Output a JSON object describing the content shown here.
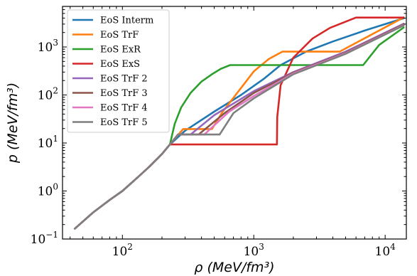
{
  "chart_data": {
    "type": "line",
    "xlabel": "ρ (MeV/fm³)",
    "ylabel": "p (MeV/fm³)",
    "xscale": "log",
    "yscale": "log",
    "xlim": [
      35,
      14500
    ],
    "ylim": [
      0.1,
      7000
    ],
    "x_ticks": [
      {
        "value": 100,
        "base": "10",
        "exp": "2"
      },
      {
        "value": 1000,
        "base": "10",
        "exp": "3"
      },
      {
        "value": 10000,
        "base": "10",
        "exp": "4"
      }
    ],
    "y_ticks": [
      {
        "value": 0.1,
        "base": "10",
        "exp": "−1"
      },
      {
        "value": 1,
        "base": "10",
        "exp": "0"
      },
      {
        "value": 10,
        "base": "10",
        "exp": "1"
      },
      {
        "value": 100,
        "base": "10",
        "exp": "2"
      },
      {
        "value": 1000,
        "base": "10",
        "exp": "3"
      }
    ],
    "grid": false,
    "legend_position": "top-left",
    "common_low_density": {
      "x": [
        43,
        60,
        80,
        100,
        130,
        160,
        200,
        230
      ],
      "y": [
        0.16,
        0.36,
        0.65,
        1.0,
        1.9,
        3.2,
        5.9,
        9.3
      ]
    },
    "series": [
      {
        "name": "EoS Interm",
        "color": "#1f77b4",
        "x": [
          230,
          300,
          500,
          800,
          1200,
          1600,
          2500,
          4000,
          7000,
          14000
        ],
        "y": [
          9.3,
          18,
          45,
          100,
          220,
          420,
          800,
          1300,
          2200,
          4000
        ]
      },
      {
        "name": "EoS TrF",
        "color": "#ff7f0e",
        "x": [
          230,
          290,
          480,
          580,
          800,
          1000,
          1300,
          1650,
          4500,
          14000
        ],
        "y": [
          9.3,
          19.5,
          19.5,
          45,
          140,
          310,
          560,
          800,
          800,
          4200
        ]
      },
      {
        "name": "EoS ExR",
        "color": "#2ca02c",
        "x": [
          230,
          250,
          280,
          330,
          400,
          480,
          560,
          660,
          6800,
          9000,
          14000
        ],
        "y": [
          9.3,
          25,
          55,
          110,
          190,
          270,
          350,
          420,
          420,
          1100,
          2600
        ]
      },
      {
        "name": "EoS ExS",
        "color": "#d62728",
        "x": [
          230,
          1500,
          1510,
          1600,
          2000,
          2800,
          3800,
          6000,
          14000
        ],
        "y": [
          9.3,
          9.3,
          35,
          160,
          600,
          1500,
          2500,
          4100,
          4100
        ]
      },
      {
        "name": "EoS TrF 2",
        "color": "#9467bd",
        "x": [
          230,
          265,
          330,
          500,
          1000,
          2000,
          5000,
          14000
        ],
        "y": [
          9.3,
          15,
          15,
          38,
          120,
          300,
          800,
          3100
        ]
      },
      {
        "name": "EoS TrF 3",
        "color": "#8c564b",
        "x": [
          230,
          265,
          380,
          600,
          1000,
          2000,
          5000,
          14000
        ],
        "y": [
          9.3,
          15,
          15,
          42,
          110,
          290,
          760,
          3000
        ]
      },
      {
        "name": "EoS TrF 4",
        "color": "#e377c2",
        "x": [
          230,
          265,
          420,
          650,
          1000,
          2000,
          5000,
          14000
        ],
        "y": [
          9.3,
          15,
          15,
          45,
          95,
          280,
          740,
          2900
        ]
      },
      {
        "name": "EoS TrF 5",
        "color": "#7f7f7f",
        "x": [
          230,
          265,
          550,
          700,
          1000,
          2000,
          5000,
          14000
        ],
        "y": [
          9.3,
          15,
          15,
          42,
          85,
          270,
          720,
          2850
        ]
      }
    ]
  }
}
